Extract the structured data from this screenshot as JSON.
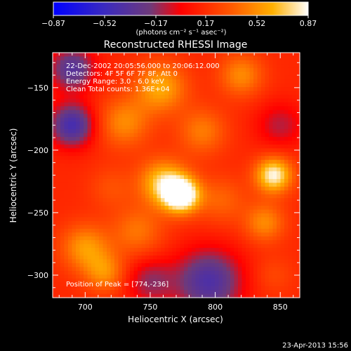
{
  "chart_data": {
    "type": "heatmap",
    "title": "Reconstructed RHESSI Image",
    "xlabel": "Heliocentric X (arcsec)",
    "ylabel": "Heliocentric Y (arcsec)",
    "xlim": [
      675,
      865
    ],
    "ylim": [
      -318,
      -122
    ],
    "x_ticks": [
      700,
      750,
      800,
      850
    ],
    "y_ticks": [
      -150,
      -200,
      -250,
      -300
    ],
    "colorbar": {
      "ticks": [
        "-0.87",
        "-0.52",
        "-0.17",
        "0.17",
        "0.52",
        "0.87"
      ],
      "range": [
        -0.87,
        0.87
      ],
      "units_text": "(photons cm⁻² s⁻¹ asec⁻²)"
    },
    "annotations": {
      "time_range": "22-Dec-2002 20:05:56.000 to 20:06:12.000",
      "detectors": "Detectors: 4F 5F 6F 7F 8F, Att 0",
      "energy_range": "Energy Range: 3.0 - 6.0 keV",
      "clean_counts": "Clean    Total counts: 1.36E+04",
      "peak": "Position of Peak = [774,-236]"
    },
    "peak_position": [
      774,
      -236
    ],
    "sources": [
      {
        "x": 774,
        "y": -236,
        "amp": 0.87,
        "w": 10
      },
      {
        "x": 760,
        "y": -226,
        "amp": 0.55,
        "w": 13
      },
      {
        "x": 845,
        "y": -220,
        "amp": 0.7,
        "w": 10
      },
      {
        "x": 838,
        "y": -258,
        "amp": 0.35,
        "w": 11
      },
      {
        "x": 758,
        "y": -150,
        "amp": 0.45,
        "w": 14
      },
      {
        "x": 730,
        "y": -178,
        "amp": 0.35,
        "w": 14
      },
      {
        "x": 790,
        "y": -185,
        "amp": 0.3,
        "w": 13
      },
      {
        "x": 820,
        "y": -140,
        "amp": 0.35,
        "w": 12
      },
      {
        "x": 805,
        "y": -240,
        "amp": 0.22,
        "w": 13
      },
      {
        "x": 700,
        "y": -278,
        "amp": 0.4,
        "w": 13
      },
      {
        "x": 715,
        "y": -298,
        "amp": 0.35,
        "w": 11
      },
      {
        "x": 740,
        "y": -265,
        "amp": 0.28,
        "w": 14
      },
      {
        "x": 720,
        "y": -230,
        "amp": 0.15,
        "w": 12
      },
      {
        "x": 845,
        "y": -300,
        "amp": 0.12,
        "w": 11
      },
      {
        "x": 690,
        "y": -180,
        "amp": -0.6,
        "w": 12
      },
      {
        "x": 690,
        "y": -135,
        "amp": -0.5,
        "w": 12
      },
      {
        "x": 795,
        "y": -305,
        "amp": -0.55,
        "w": 18
      },
      {
        "x": 850,
        "y": -180,
        "amp": -0.25,
        "w": 13
      },
      {
        "x": 750,
        "y": -305,
        "amp": -0.3,
        "w": 13
      }
    ],
    "background_level": 0.15,
    "footer_date": "23-Apr-2013 15:56"
  }
}
